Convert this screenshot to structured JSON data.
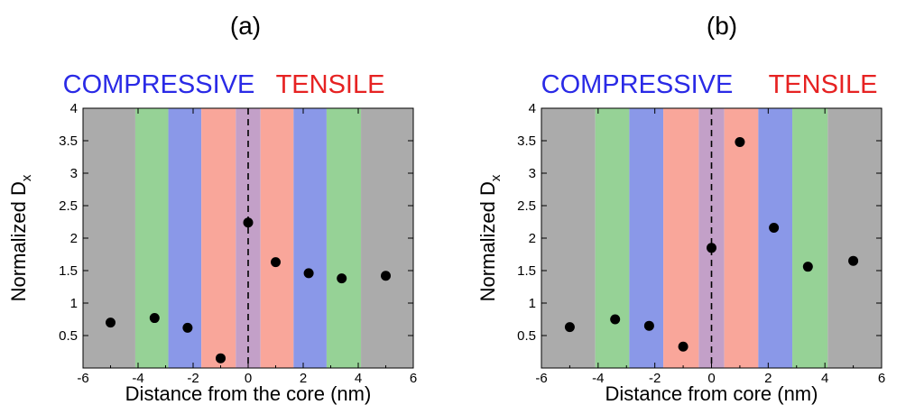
{
  "colors": {
    "grey": "#ababab",
    "green": "#96d296",
    "blue": "#8a98e8",
    "salmon": "#f9a69a",
    "purple": "#c3a0c8",
    "compressive_text": "#2a2ae6",
    "tensile_text": "#e62222",
    "marker": "#000000"
  },
  "chart_data": [
    {
      "type": "scatter",
      "title": "(a)",
      "region_labels": {
        "compressive": "COMPRESSIVE",
        "tensile": "TENSILE"
      },
      "xlabel": "Distance from the core (nm)",
      "ylabel_main": "Normalized D",
      "ylabel_sub": "x",
      "xlim": [
        -6,
        6
      ],
      "ylim": [
        0,
        4
      ],
      "x_ticks": [
        "-6",
        "-4",
        "-2",
        "0",
        "2",
        "4",
        "6"
      ],
      "y_ticks": [
        "0.5",
        "1",
        "1.5",
        "2",
        "2.5",
        "3",
        "3.5",
        "4"
      ],
      "bands": [
        {
          "x0": -6.0,
          "x1": -4.1,
          "color": "grey"
        },
        {
          "x0": -4.1,
          "x1": -2.9,
          "color": "green"
        },
        {
          "x0": -2.9,
          "x1": -1.7,
          "color": "blue"
        },
        {
          "x0": -1.7,
          "x1": -0.45,
          "color": "salmon"
        },
        {
          "x0": -0.45,
          "x1": 0.45,
          "color": "purple"
        },
        {
          "x0": 0.45,
          "x1": 1.65,
          "color": "salmon"
        },
        {
          "x0": 1.65,
          "x1": 2.85,
          "color": "blue"
        },
        {
          "x0": 2.85,
          "x1": 4.1,
          "color": "green"
        },
        {
          "x0": 4.1,
          "x1": 6.0,
          "color": "grey"
        }
      ],
      "core_line_x": 0,
      "points": [
        {
          "x": -5.0,
          "y": 0.7
        },
        {
          "x": -3.4,
          "y": 0.77
        },
        {
          "x": -2.2,
          "y": 0.62
        },
        {
          "x": -1.0,
          "y": 0.15
        },
        {
          "x": 0.0,
          "y": 2.24
        },
        {
          "x": 1.0,
          "y": 1.63
        },
        {
          "x": 2.2,
          "y": 1.46
        },
        {
          "x": 3.4,
          "y": 1.38
        },
        {
          "x": 5.0,
          "y": 1.42
        }
      ]
    },
    {
      "type": "scatter",
      "title": "(b)",
      "region_labels": {
        "compressive": "COMPRESSIVE",
        "tensile": "TENSILE"
      },
      "xlabel": "Distance from core (nm)",
      "ylabel_main": "Normalized D",
      "ylabel_sub": "x",
      "xlim": [
        -6,
        6
      ],
      "ylim": [
        0,
        4
      ],
      "x_ticks": [
        "-6",
        "-4",
        "-2",
        "0",
        "2",
        "4",
        "6"
      ],
      "y_ticks": [
        "0.5",
        "1",
        "1.5",
        "2",
        "2.5",
        "3",
        "3.5",
        "4"
      ],
      "bands": [
        {
          "x0": -6.0,
          "x1": -4.1,
          "color": "grey"
        },
        {
          "x0": -4.1,
          "x1": -2.9,
          "color": "green"
        },
        {
          "x0": -2.9,
          "x1": -1.7,
          "color": "blue"
        },
        {
          "x0": -1.7,
          "x1": -0.45,
          "color": "salmon"
        },
        {
          "x0": -0.45,
          "x1": 0.45,
          "color": "purple"
        },
        {
          "x0": 0.45,
          "x1": 1.65,
          "color": "salmon"
        },
        {
          "x0": 1.65,
          "x1": 2.85,
          "color": "blue"
        },
        {
          "x0": 2.85,
          "x1": 4.1,
          "color": "green"
        },
        {
          "x0": 4.1,
          "x1": 6.0,
          "color": "grey"
        }
      ],
      "core_line_x": 0,
      "points": [
        {
          "x": -5.0,
          "y": 0.63
        },
        {
          "x": -3.4,
          "y": 0.75
        },
        {
          "x": -2.2,
          "y": 0.65
        },
        {
          "x": -1.0,
          "y": 0.33
        },
        {
          "x": 0.0,
          "y": 1.85
        },
        {
          "x": 1.0,
          "y": 3.48
        },
        {
          "x": 2.2,
          "y": 2.16
        },
        {
          "x": 3.4,
          "y": 1.56
        },
        {
          "x": 5.0,
          "y": 1.65
        }
      ]
    }
  ]
}
